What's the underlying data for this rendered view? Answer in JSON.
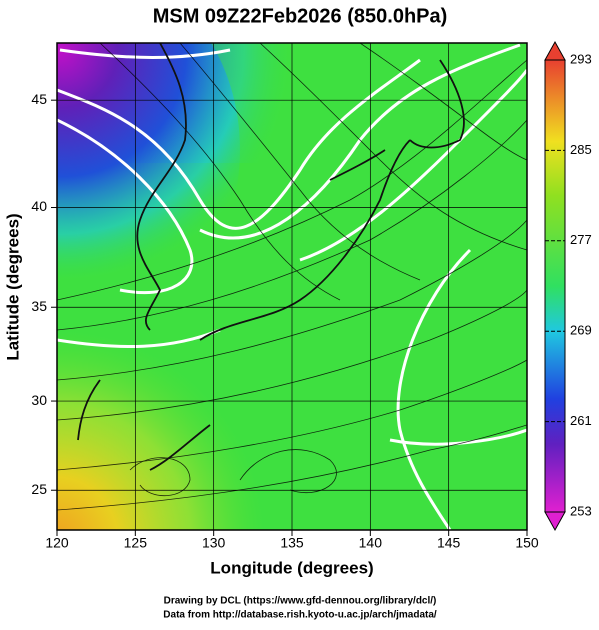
{
  "map": {
    "title": "MSM 09Z22Feb2026 (850.0hPa)",
    "xlabel": "Longitude (degrees)",
    "ylabel": "Latitude  (degrees)",
    "xlim": [
      120,
      150
    ],
    "ylim": [
      22.7,
      47.5
    ],
    "xticks": [
      120,
      125,
      130,
      135,
      140,
      145,
      150
    ],
    "yticks": [
      25,
      30,
      35,
      40,
      45
    ],
    "colorbar": {
      "lim": [
        253,
        293
      ],
      "ticks": [
        253,
        261,
        269,
        277,
        285,
        293
      ]
    },
    "credits": [
      "Drawing by DCL (https://www.gfd-dennou.org/library/dcl/)",
      "Data from http://database.rish.kyoto-u.ac.jp/arch/jmadata/"
    ]
  }
}
